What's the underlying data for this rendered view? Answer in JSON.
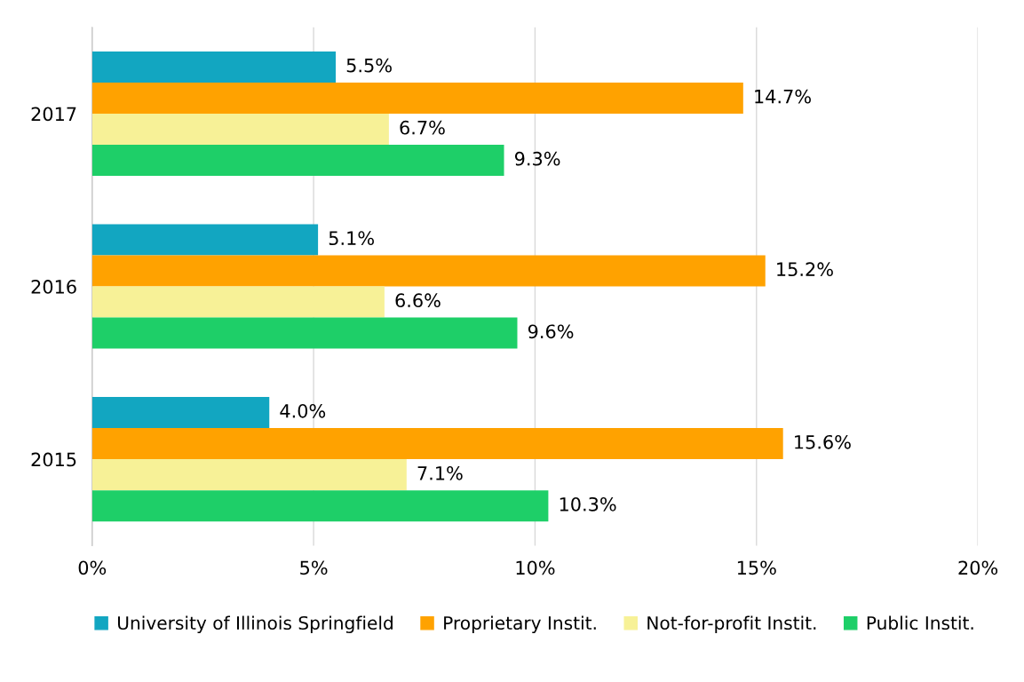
{
  "chart_data": {
    "type": "bar",
    "orientation": "horizontal",
    "categories": [
      "2017",
      "2016",
      "2015"
    ],
    "series": [
      {
        "name": "University of Illinois Springfield",
        "color": "#12a6c1",
        "values": [
          5.5,
          5.1,
          4.0
        ],
        "value_labels": [
          "5.5%",
          "5.1%",
          "4.0%"
        ]
      },
      {
        "name": "Proprietary Instit.",
        "color": "#ffa200",
        "values": [
          14.7,
          15.2,
          15.6
        ],
        "value_labels": [
          "14.7%",
          "15.2%",
          "15.6%"
        ]
      },
      {
        "name": "Not-for-profit Instit.",
        "color": "#f7f197",
        "values": [
          6.7,
          6.6,
          7.1
        ],
        "value_labels": [
          "6.7%",
          "6.6%",
          "7.1%"
        ]
      },
      {
        "name": "Public Instit.",
        "color": "#1ecf68",
        "values": [
          9.3,
          9.6,
          10.3
        ],
        "value_labels": [
          "9.3%",
          "9.6%",
          "10.3%"
        ]
      }
    ],
    "xlim": [
      0,
      20
    ],
    "xticks": [
      {
        "value": 0,
        "label": "0%"
      },
      {
        "value": 5,
        "label": "5%"
      },
      {
        "value": 10,
        "label": "10%"
      },
      {
        "value": 15,
        "label": "15%"
      },
      {
        "value": 20,
        "label": "20%"
      }
    ],
    "grid": "x",
    "legend": "bottom"
  }
}
